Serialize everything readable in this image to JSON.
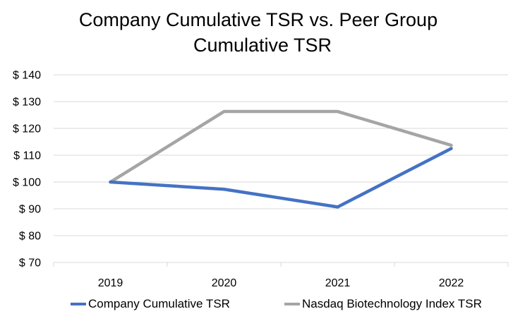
{
  "chart_data": {
    "type": "line",
    "title_line1": "Company Cumulative TSR vs. Peer Group",
    "title_line2": "Cumulative TSR",
    "categories": [
      "2019",
      "2020",
      "2021",
      "2022"
    ],
    "ylim": [
      70,
      140
    ],
    "ytick_step": 10,
    "ytick_labels": [
      "$ 140",
      "$ 130",
      "$ 120",
      "$ 110",
      "$ 100",
      "$ 90",
      "$ 80",
      "$ 70"
    ],
    "series": [
      {
        "name": "Company Cumulative TSR",
        "color": "#4472C4",
        "values": [
          100,
          97.3,
          90.7,
          112.5
        ]
      },
      {
        "name": "Nasdaq Biotechnology Index TSR",
        "color": "#A5A5A5",
        "values": [
          100,
          126.3,
          126.3,
          113.7
        ]
      }
    ],
    "grid": true,
    "legend_position": "bottom"
  }
}
